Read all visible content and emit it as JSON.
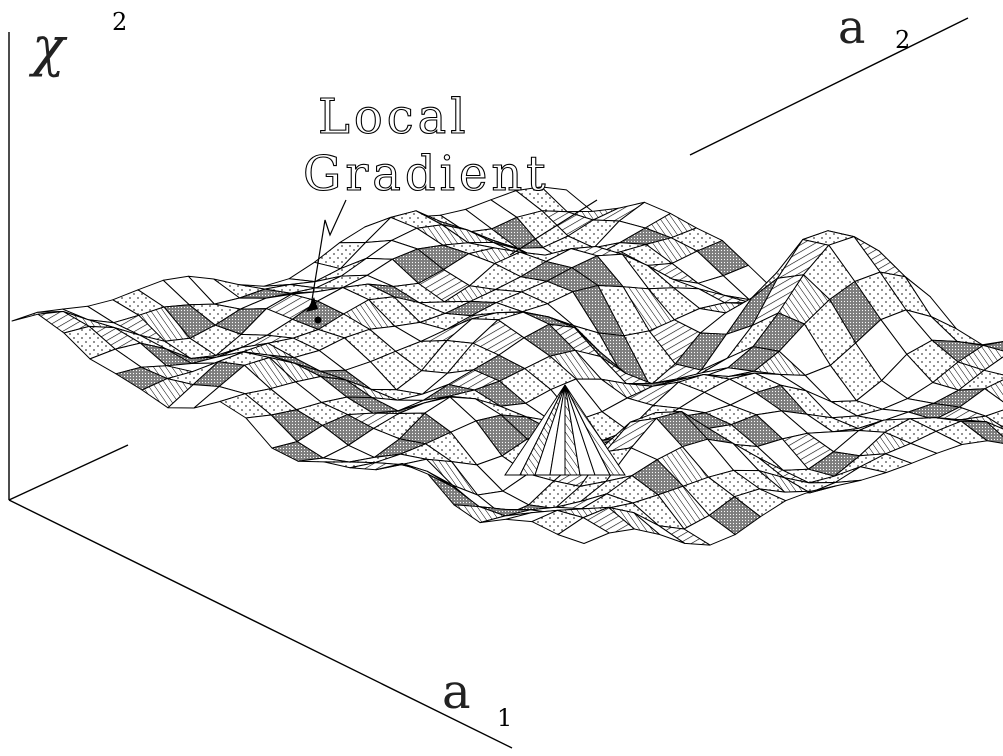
{
  "axes": {
    "z": {
      "symbol": "χ",
      "superscript": "2"
    },
    "x": {
      "symbol": "a",
      "subscript": "1"
    },
    "y": {
      "symbol": "a",
      "subscript": "2"
    }
  },
  "annotation": {
    "line1": "Local",
    "line2": "Gradient"
  },
  "colors": {
    "line": "#000000",
    "paper": "#ffffff",
    "dark": "#8a8a8a",
    "dotted": "#f2f2f2"
  }
}
